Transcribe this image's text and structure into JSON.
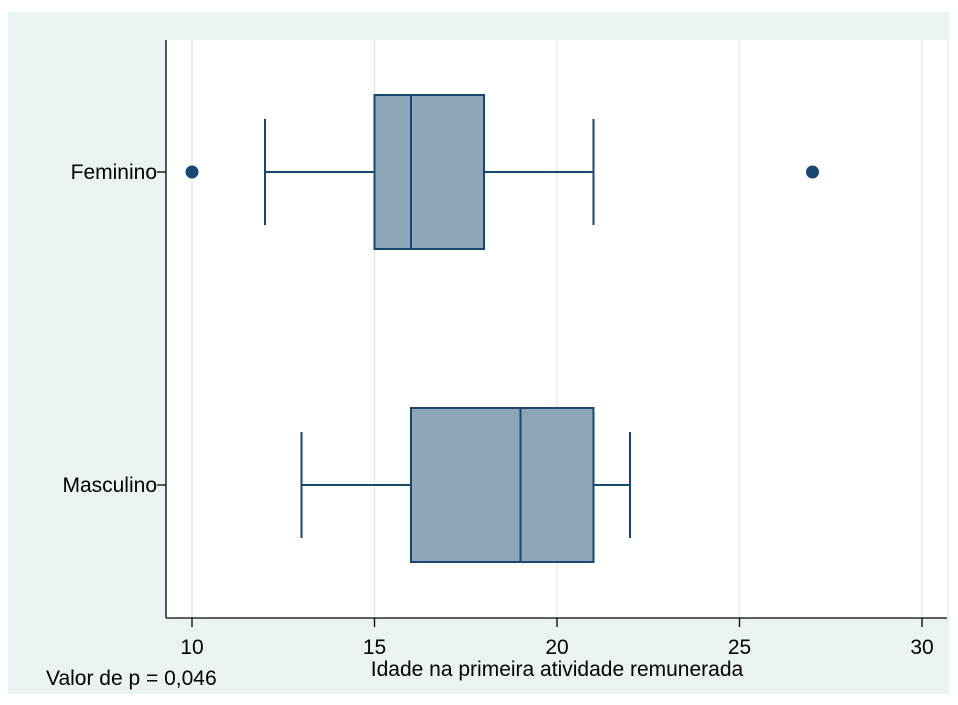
{
  "colors": {
    "outer_background": "#eaf2f3",
    "plot_background": "#ffffff",
    "gridline": "#e6ecee",
    "box_fill": "#8fa5b8",
    "box_stroke": "#1a476f"
  },
  "chart_data": {
    "type": "box",
    "orientation": "horizontal",
    "title": "",
    "xlabel": "Idade na primeira atividade remunerada",
    "ylabel": "",
    "xlim": [
      9.5,
      30.8
    ],
    "x_ticks": [
      10,
      15,
      20,
      25,
      30
    ],
    "grid": true,
    "note": "Valor de p = 0,046",
    "series": [
      {
        "name": "Feminino",
        "min": 12,
        "q1": 15,
        "median": 16,
        "q3": 18,
        "max": 21,
        "outliers": [
          10,
          27
        ]
      },
      {
        "name": "Masculino",
        "min": 13,
        "q1": 16,
        "median": 19,
        "q3": 21,
        "max": 22,
        "outliers": []
      }
    ]
  }
}
